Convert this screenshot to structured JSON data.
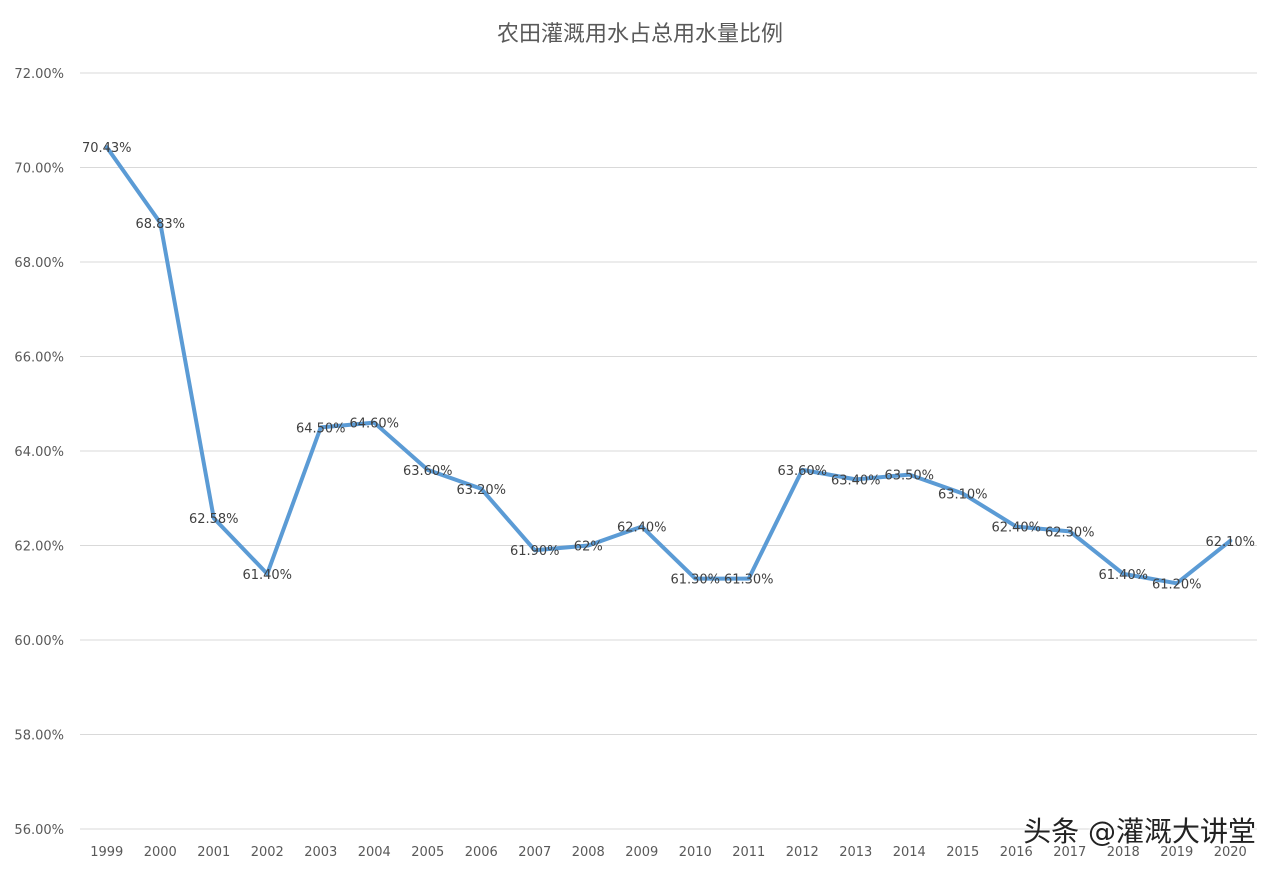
{
  "chart_data": {
    "type": "line",
    "title": "农田灌溉用水占总用水量比例",
    "categories": [
      "1999",
      "2000",
      "2001",
      "2002",
      "2003",
      "2004",
      "2005",
      "2006",
      "2007",
      "2008",
      "2009",
      "2010",
      "2011",
      "2012",
      "2013",
      "2014",
      "2015",
      "2016",
      "2017",
      "2018",
      "2019",
      "2020"
    ],
    "series": [
      {
        "values": [
          70.43,
          68.83,
          62.58,
          61.4,
          64.5,
          64.6,
          63.6,
          63.2,
          61.9,
          62,
          62.4,
          61.3,
          61.3,
          63.6,
          63.4,
          63.5,
          63.1,
          62.4,
          62.3,
          61.4,
          61.2,
          62.1
        ],
        "labels": [
          "70.43%",
          "68.83%",
          "62.58%",
          "61.40%",
          "64.50%",
          "64.60%",
          "63.60%",
          "63.20%",
          "61.90%",
          "62%",
          "62.40%",
          "61.30%",
          "61.30%",
          "63.60%",
          "63.40%",
          "63.50%",
          "63.10%",
          "62.40%",
          "62.30%",
          "61.40%",
          "61.20%",
          "62.10%"
        ],
        "color": "#5B9BD5"
      }
    ],
    "ylim": [
      56,
      72
    ],
    "yticks": [
      "56.00%",
      "58.00%",
      "60.00%",
      "62.00%",
      "64.00%",
      "66.00%",
      "68.00%",
      "70.00%",
      "72.00%"
    ],
    "grid": true,
    "legend": "none",
    "xlabel": "",
    "ylabel": ""
  },
  "watermark": "头条 @灌溉大讲堂"
}
